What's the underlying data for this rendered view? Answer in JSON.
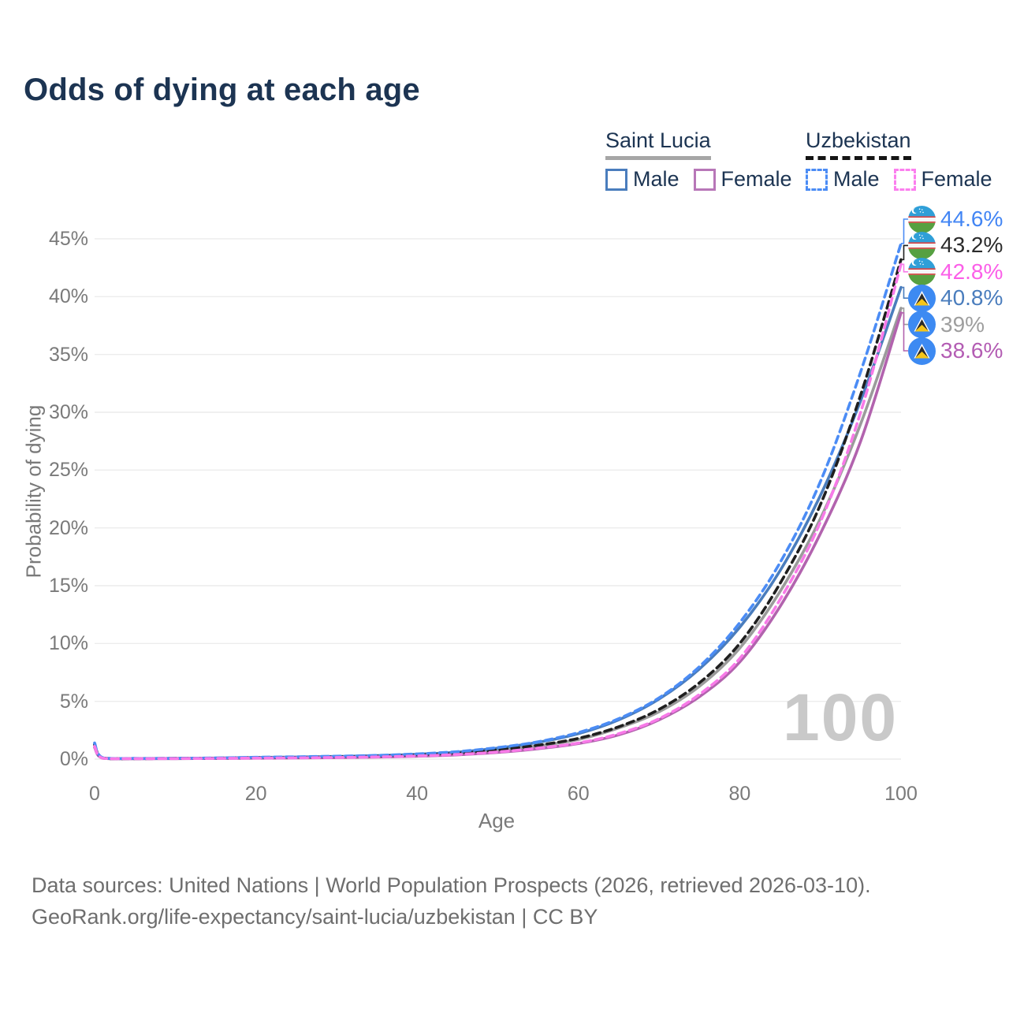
{
  "title": "Odds of dying at each age",
  "watermark": "100",
  "legend": {
    "groups": [
      {
        "name": "Saint Lucia",
        "line_style": "solid",
        "underline_color": "#a6a6a6",
        "items": [
          {
            "label": "Male",
            "color": "#4a7dbd"
          },
          {
            "label": "Female",
            "color": "#b877b8"
          }
        ]
      },
      {
        "name": "Uzbekistan",
        "line_style": "dashed",
        "underline_color": "#151515",
        "items": [
          {
            "label": "Male",
            "color": "#4b8cf5"
          },
          {
            "label": "Female",
            "color": "#fb7fee"
          }
        ]
      }
    ]
  },
  "axes": {
    "x": {
      "label": "Age",
      "ticks": [
        0,
        20,
        40,
        60,
        80,
        100
      ],
      "tick_labels": [
        "0",
        "20",
        "40",
        "60",
        "80",
        "100"
      ]
    },
    "y": {
      "label": "Probability of dying",
      "ticks": [
        0,
        5,
        10,
        15,
        20,
        25,
        30,
        35,
        40,
        45
      ],
      "tick_labels": [
        "0%",
        "5%",
        "10%",
        "15%",
        "20%",
        "25%",
        "30%",
        "35%",
        "40%",
        "45%"
      ]
    }
  },
  "footer": {
    "line1": "Data sources: United Nations | World Population Prospects (2026, retrieved 2026-03-10).",
    "line2": "GeoRank.org/life-expectancy/saint-lucia/uzbekistan | CC BY"
  },
  "chart_data": {
    "type": "line",
    "title": "Odds of dying at each age",
    "xlabel": "Age",
    "ylabel": "Probability of dying",
    "xlim": [
      0,
      100
    ],
    "ylim": [
      0,
      45
    ],
    "grid": "horizontal",
    "legend_position": "top-right",
    "x": [
      0,
      1,
      5,
      10,
      15,
      20,
      25,
      30,
      35,
      40,
      45,
      50,
      55,
      60,
      65,
      70,
      75,
      80,
      85,
      90,
      95,
      100
    ],
    "series": [
      {
        "name": "Uzbekistan Male",
        "country": "Uzbekistan",
        "sex": "Male",
        "style": "dashed",
        "color": "#4b8cf5",
        "label_color": "#4285f4",
        "flag": "uz",
        "end_label": "44.6%",
        "end_value": 44.6,
        "y": [
          1.4,
          0.12,
          0.06,
          0.07,
          0.1,
          0.16,
          0.2,
          0.25,
          0.32,
          0.45,
          0.65,
          1.0,
          1.5,
          2.3,
          3.5,
          5.3,
          8.0,
          11.8,
          17.0,
          24.0,
          33.5,
          44.6
        ]
      },
      {
        "name": "Uzbekistan Total",
        "country": "Uzbekistan",
        "sex": "Total",
        "style": "dashed",
        "color": "#1f1f1f",
        "label_color": "#2b2b2b",
        "flag": "uz",
        "end_label": "43.2%",
        "end_value": 43.2,
        "y": [
          1.25,
          0.1,
          0.05,
          0.06,
          0.08,
          0.12,
          0.15,
          0.2,
          0.26,
          0.36,
          0.52,
          0.8,
          1.2,
          1.8,
          2.8,
          4.3,
          6.6,
          10.0,
          15.2,
          22.0,
          31.5,
          43.2
        ]
      },
      {
        "name": "Uzbekistan Female",
        "country": "Uzbekistan",
        "sex": "Female",
        "style": "dashed",
        "color": "#f87ae8",
        "label_color": "#fb5fe8",
        "flag": "uz",
        "end_label": "42.8%",
        "end_value": 42.8,
        "y": [
          1.1,
          0.08,
          0.04,
          0.05,
          0.06,
          0.09,
          0.11,
          0.14,
          0.19,
          0.27,
          0.4,
          0.62,
          0.95,
          1.4,
          2.2,
          3.5,
          5.6,
          8.7,
          13.8,
          20.5,
          30.0,
          42.8
        ]
      },
      {
        "name": "Saint Lucia Male",
        "country": "Saint Lucia",
        "sex": "Male",
        "style": "solid",
        "color": "#4a7dbd",
        "label_color": "#4a7dbd",
        "flag": "lc",
        "end_label": "40.8%",
        "end_value": 40.8,
        "y": [
          1.3,
          0.1,
          0.05,
          0.06,
          0.09,
          0.14,
          0.18,
          0.23,
          0.3,
          0.42,
          0.6,
          0.95,
          1.45,
          2.2,
          3.4,
          5.2,
          7.8,
          11.4,
          16.3,
          22.8,
          31.0,
          40.8
        ]
      },
      {
        "name": "Saint Lucia Total",
        "country": "Saint Lucia",
        "sex": "Total",
        "style": "solid",
        "color": "#9b9b9b",
        "label_color": "#9e9e9e",
        "flag": "lc",
        "end_label": "39%",
        "end_value": 39,
        "y": [
          1.15,
          0.09,
          0.05,
          0.05,
          0.07,
          0.11,
          0.14,
          0.18,
          0.24,
          0.33,
          0.48,
          0.75,
          1.15,
          1.7,
          2.7,
          4.1,
          6.3,
          9.6,
          14.5,
          20.8,
          29.0,
          39.0
        ]
      },
      {
        "name": "Saint Lucia Female",
        "country": "Saint Lucia",
        "sex": "Female",
        "style": "solid",
        "color": "#b263ae",
        "label_color": "#b35cb3",
        "flag": "lc",
        "end_label": "38.6%",
        "end_value": 38.6,
        "y": [
          1.0,
          0.08,
          0.04,
          0.05,
          0.06,
          0.08,
          0.1,
          0.13,
          0.18,
          0.25,
          0.37,
          0.58,
          0.9,
          1.35,
          2.1,
          3.4,
          5.4,
          8.4,
          13.2,
          19.5,
          27.5,
          38.6
        ]
      }
    ]
  }
}
